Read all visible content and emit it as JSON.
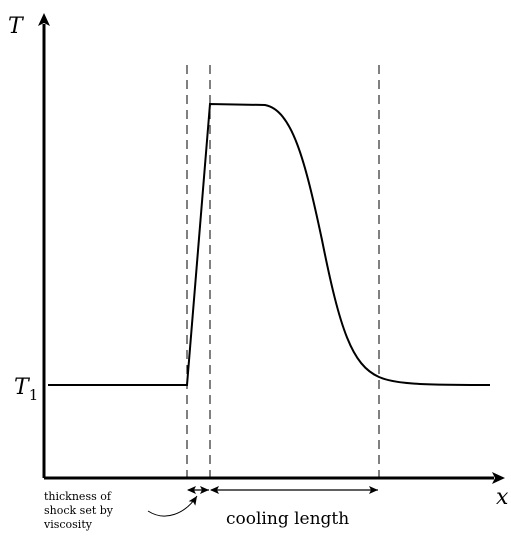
{
  "axes": {
    "y_label": "T",
    "x_label": "x",
    "t1_label_main": "T",
    "t1_label_sub": "1"
  },
  "annotations": {
    "shock_thickness_line1": "thickness of",
    "shock_thickness_line2": "shock set by",
    "shock_thickness_line3": "viscosity",
    "cooling_length": "cooling length"
  },
  "colors": {
    "line": "#000000"
  }
}
